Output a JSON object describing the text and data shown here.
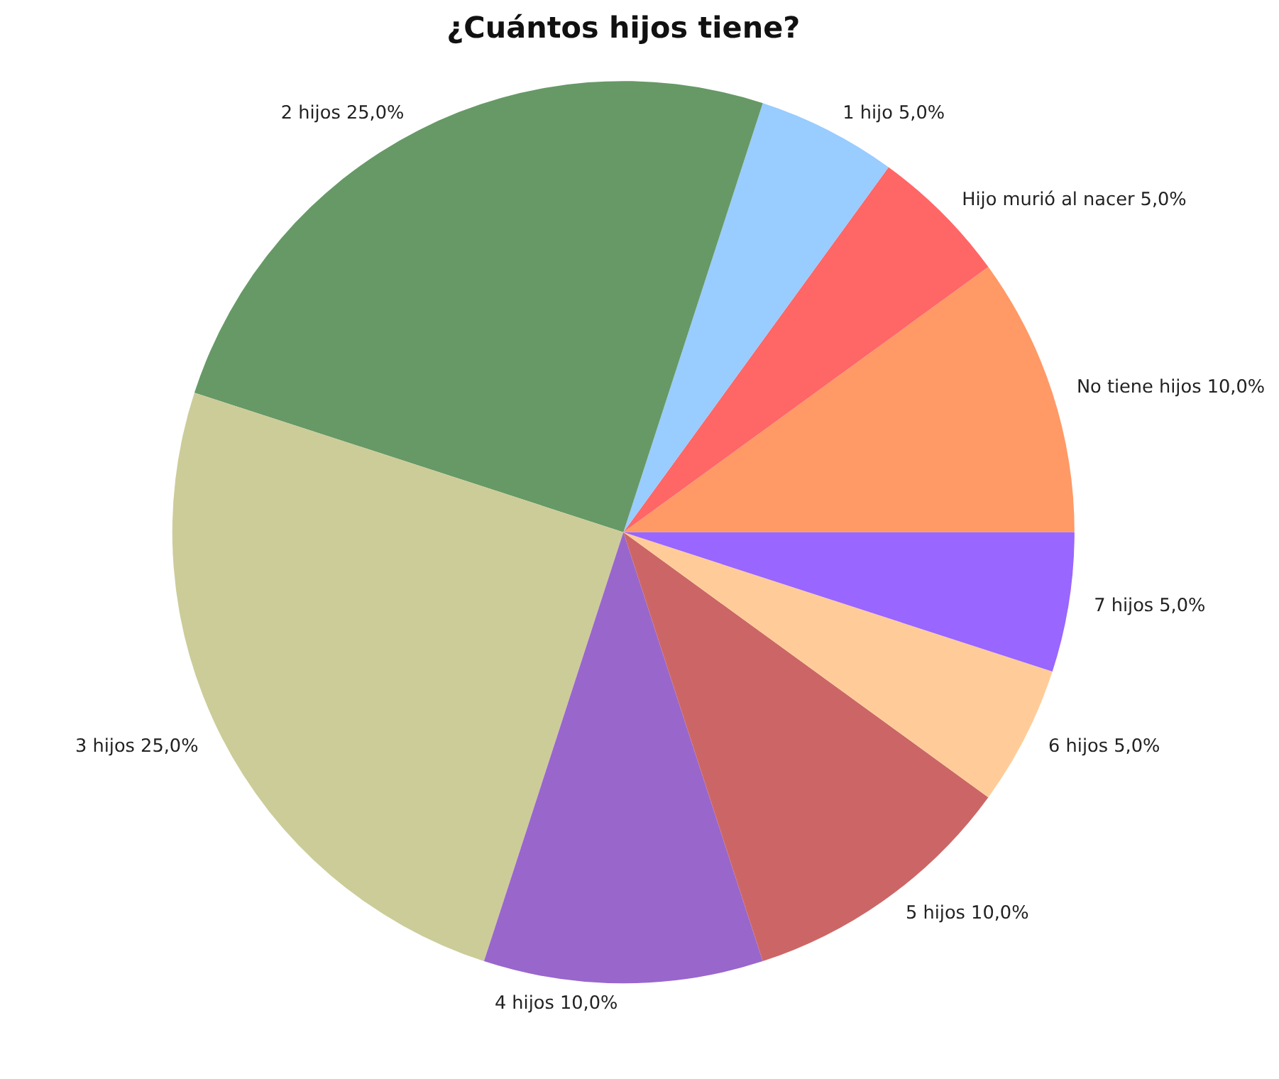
{
  "chart_data": {
    "type": "pie",
    "title": "¿Cuántos hijos tiene?",
    "categories": [
      "No tiene hijos",
      "Hijo murió al nacer",
      "1 hijo",
      "2 hijos",
      "3 hijos",
      "4 hijos",
      "5 hijos",
      "6 hijos",
      "7 hijos"
    ],
    "values": [
      10,
      5,
      5,
      25,
      25,
      10,
      10,
      5,
      5
    ],
    "value_labels": [
      "10,0%",
      "5,0%",
      "5,0%",
      "25,0%",
      "25,0%",
      "10,0%",
      "10,0%",
      "5,0%",
      "5,0%"
    ],
    "colors": [
      "#ff9966",
      "#ff6666",
      "#99ccff",
      "#669966",
      "#cccc99",
      "#9966cc",
      "#cc6666",
      "#ffcc99",
      "#9966ff"
    ],
    "legend": false
  }
}
